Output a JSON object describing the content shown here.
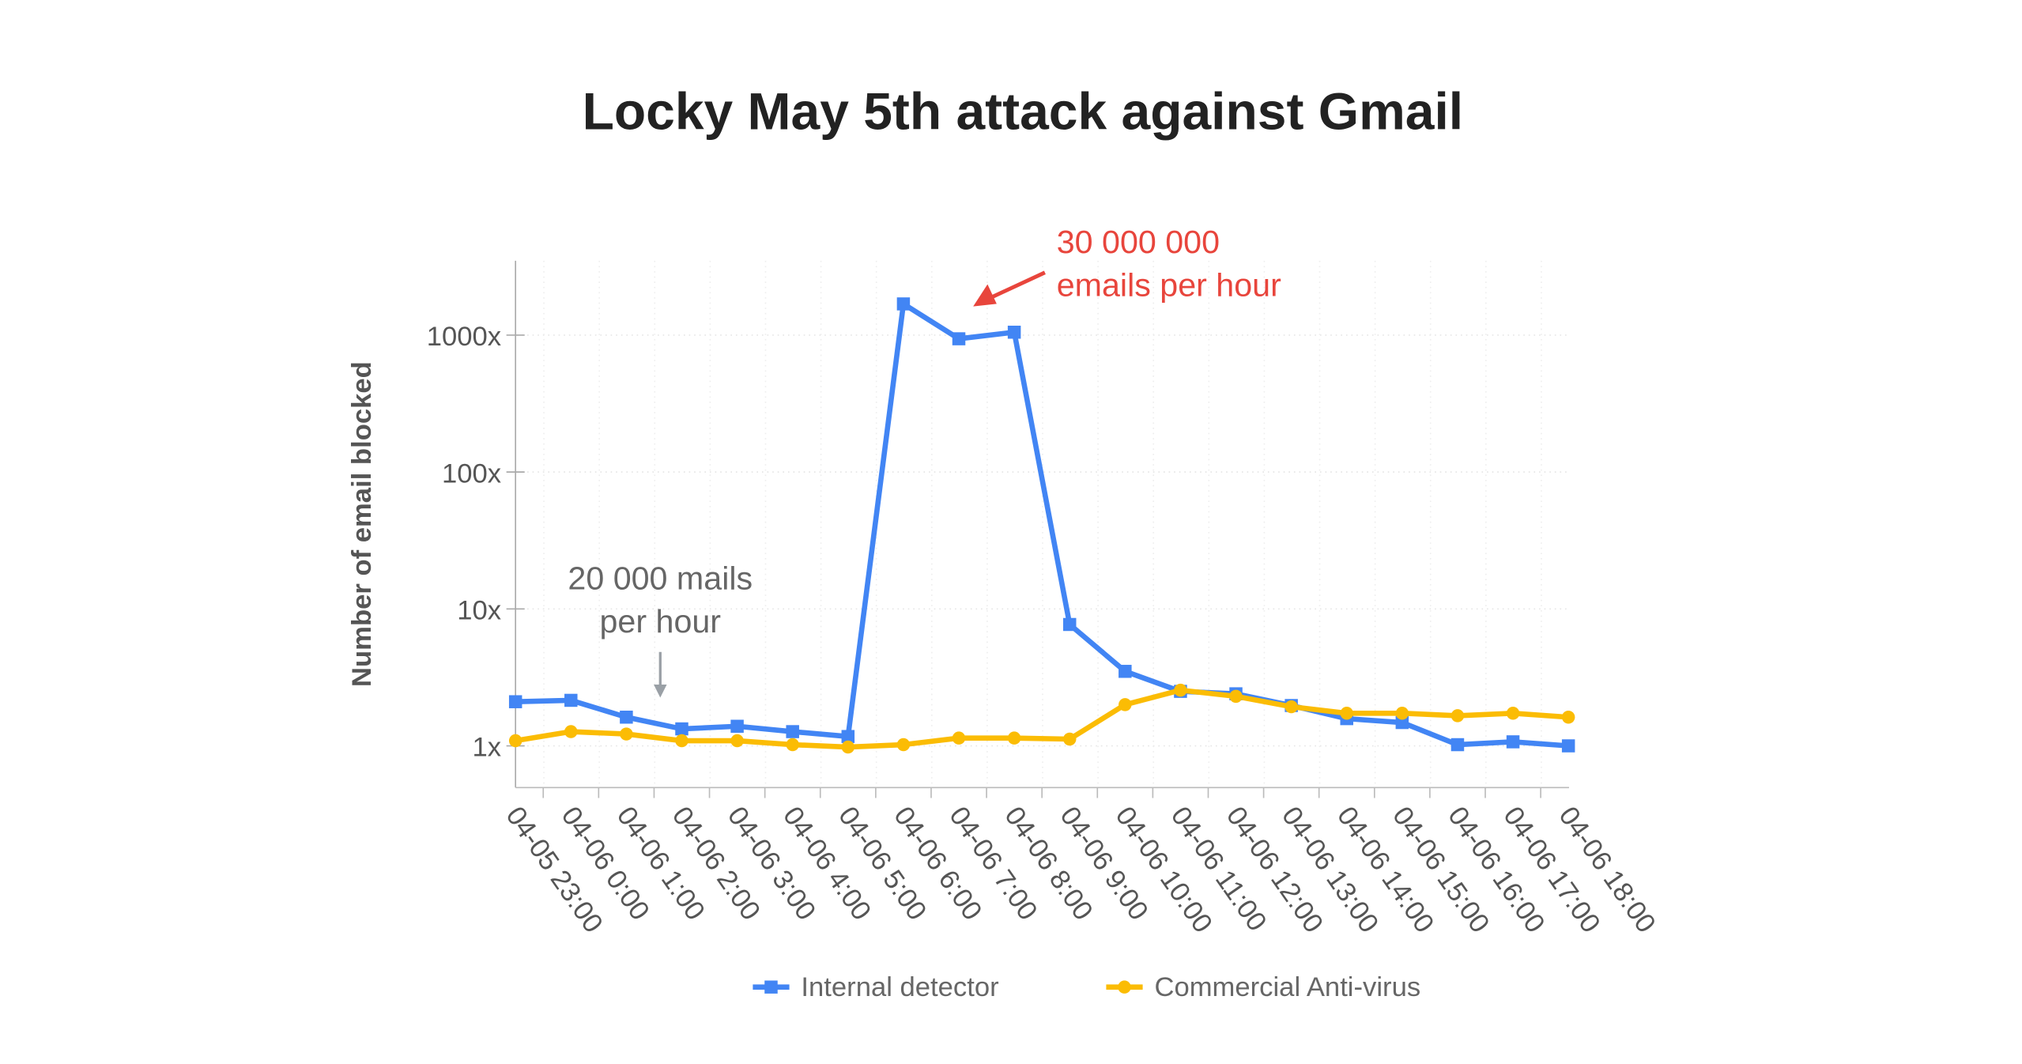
{
  "chart_data": {
    "type": "line",
    "title": "Locky May 5th attack against Gmail",
    "xlabel": "",
    "ylabel": "Number of email blocked",
    "yscale": "log",
    "ylim": [
      0.6,
      2000
    ],
    "yticks": [
      1,
      10,
      100,
      1000
    ],
    "ytick_labels": [
      "1x",
      "10x",
      "100x",
      "1000x"
    ],
    "grid": true,
    "legend_position": "bottom",
    "categories": [
      "04-05 23:00",
      "04-06 0:00",
      "04-06 1:00",
      "04-06 2:00",
      "04-06 3:00",
      "04-06 4:00",
      "04-06 5:00",
      "04-06 6:00",
      "04-06 7:00",
      "04-06 8:00",
      "04-06 9:00",
      "04-06 10:00",
      "04-06 11:00",
      "04-06 12:00",
      "04-06 13:00",
      "04-06 14:00",
      "04-06 15:00",
      "04-06 16:00",
      "04-06 17:00",
      "04-06 18:00"
    ],
    "series": [
      {
        "name": "Internal detector",
        "color": "#4285f4",
        "marker": "square",
        "values": [
          2.1,
          2.15,
          1.62,
          1.33,
          1.39,
          1.27,
          1.17,
          1690,
          940,
          1050,
          7.7,
          3.5,
          2.5,
          2.4,
          1.97,
          1.58,
          1.48,
          1.02,
          1.07,
          1.0
        ]
      },
      {
        "name": "Commercial Anti-virus",
        "color": "#fbbc04",
        "marker": "circle",
        "values": [
          1.09,
          1.27,
          1.22,
          1.09,
          1.09,
          1.02,
          0.98,
          1.02,
          1.14,
          1.14,
          1.12,
          2.0,
          2.55,
          2.3,
          1.93,
          1.73,
          1.73,
          1.66,
          1.73,
          1.62
        ]
      }
    ],
    "annotations": [
      {
        "text_lines": [
          "30 000 000",
          "emails per hour"
        ],
        "color": "#e8453c",
        "points_to": "04-06 6:00 peak"
      },
      {
        "text_lines": [
          "20 000 mails",
          "per hour"
        ],
        "color": "#666666",
        "points_to": "baseline around 04-06 1:00"
      }
    ]
  },
  "legend": {
    "items": [
      {
        "label": "Internal detector",
        "color": "#4285f4"
      },
      {
        "label": "Commercial Anti-virus",
        "color": "#fbbc04"
      }
    ]
  }
}
